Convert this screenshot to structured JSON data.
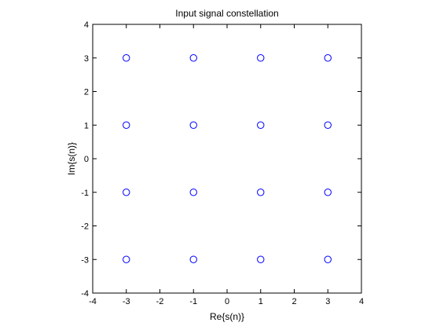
{
  "chart_data": {
    "type": "scatter",
    "title": "Input signal constellation",
    "xlabel": "Re{s(n)}",
    "ylabel": "Im{s(n)}",
    "xlim": [
      -4,
      4
    ],
    "ylim": [
      -4,
      4
    ],
    "xticks": [
      "-4",
      "-3",
      "-2",
      "-1",
      "0",
      "1",
      "2",
      "3",
      "4"
    ],
    "yticks": [
      "-4",
      "-3",
      "-2",
      "-1",
      "0",
      "1",
      "2",
      "3",
      "4"
    ],
    "grid": false,
    "marker": "circle",
    "marker_color": "#0000ff",
    "points": [
      {
        "x": -3,
        "y": 3
      },
      {
        "x": -1,
        "y": 3
      },
      {
        "x": 1,
        "y": 3
      },
      {
        "x": 3,
        "y": 3
      },
      {
        "x": -3,
        "y": 1
      },
      {
        "x": -1,
        "y": 1
      },
      {
        "x": 1,
        "y": 1
      },
      {
        "x": 3,
        "y": 1
      },
      {
        "x": -3,
        "y": -1
      },
      {
        "x": -1,
        "y": -1
      },
      {
        "x": 1,
        "y": -1
      },
      {
        "x": 3,
        "y": -1
      },
      {
        "x": -3,
        "y": -3
      },
      {
        "x": -1,
        "y": -3
      },
      {
        "x": 1,
        "y": -3
      },
      {
        "x": 3,
        "y": -3
      }
    ]
  }
}
